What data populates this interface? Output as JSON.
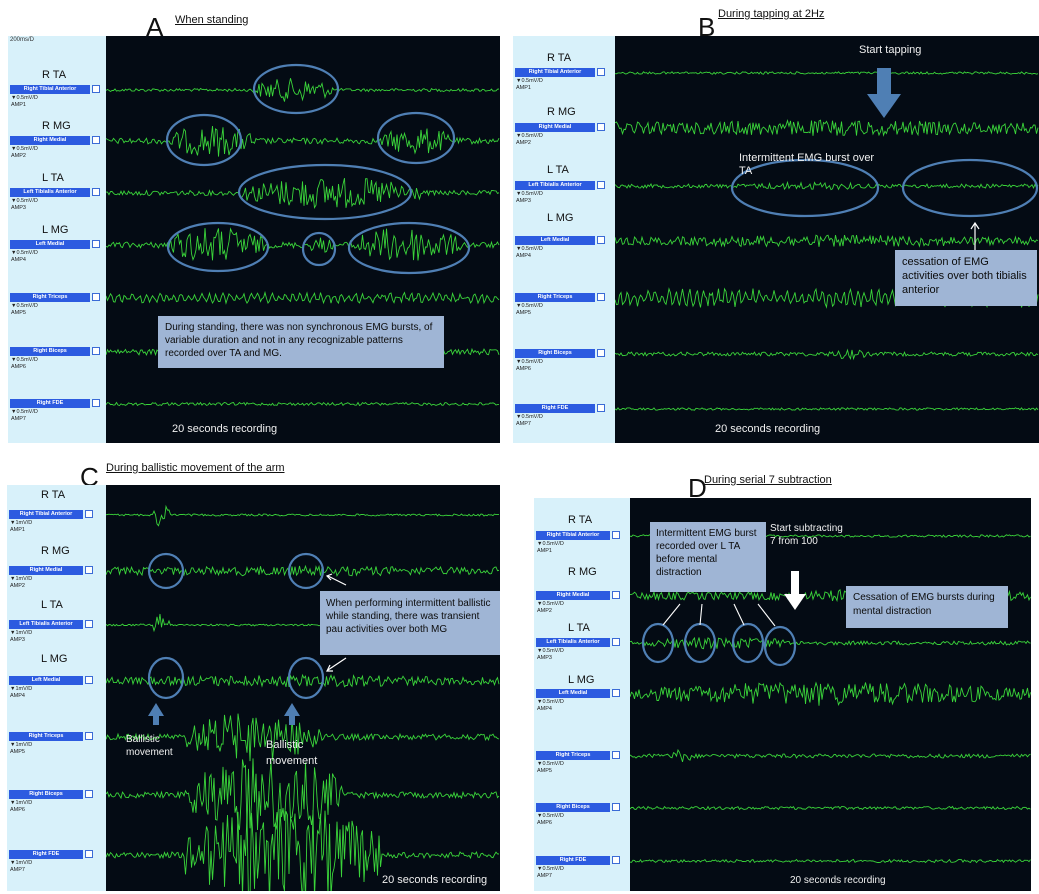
{
  "panels": [
    {
      "id": "A",
      "letter": "A",
      "title": "When standing",
      "scale": "200ms/D",
      "footer": "20 seconds recording",
      "channels": [
        {
          "name": "R TA",
          "button": "Right Tibial Anterior",
          "sens": "0.5mV/D",
          "amp": "AMP1"
        },
        {
          "name": "R MG",
          "button": "Right Medial",
          "sens": "0.5mV/D",
          "amp": "AMP2"
        },
        {
          "name": "L TA",
          "button": "Left Tibialis Anterior",
          "sens": "0.5mV/D",
          "amp": "AMP3"
        },
        {
          "name": "L MG",
          "button": "Left Medial",
          "sens": "0.5mV/D",
          "amp": "AMP4"
        },
        {
          "name": "",
          "button": "Right Triceps",
          "sens": "0.5mV/D",
          "amp": "AMP5"
        },
        {
          "name": "",
          "button": "Right Biceps",
          "sens": "0.5mV/D",
          "amp": "AMP6"
        },
        {
          "name": "",
          "button": "Right FDE",
          "sens": "0.5mV/D",
          "amp": "AMP7"
        }
      ],
      "notes": [
        "During standing, there was non synchronous EMG bursts, of variable duration and not in any recognizable patterns recorded over TA and MG."
      ]
    },
    {
      "id": "B",
      "letter": "B",
      "title": "During tapping at 2Hz",
      "footer": "20 seconds recording",
      "channels": [
        {
          "name": "R TA",
          "button": "Right Tibial Anterior",
          "sens": "0.5mV/D",
          "amp": "AMP1"
        },
        {
          "name": "R MG",
          "button": "Right Medial",
          "sens": "0.5mV/D",
          "amp": "AMP2"
        },
        {
          "name": "L TA",
          "button": "Left Tibialis Anterior",
          "sens": "0.5mV/D",
          "amp": "AMP3"
        },
        {
          "name": "L MG",
          "button": "Left Medial",
          "sens": "0.5mV/D",
          "amp": "AMP4"
        },
        {
          "name": "",
          "button": "Right Triceps",
          "sens": "0.5mV/D",
          "amp": "AMP5"
        },
        {
          "name": "",
          "button": "Right Biceps",
          "sens": "0.5mV/D",
          "amp": "AMP6"
        },
        {
          "name": "",
          "button": "Right FDE",
          "sens": "0.5mV/D",
          "amp": "AMP7"
        }
      ],
      "labels": {
        "start": "Start tapping",
        "burst": "Intermittent  EMG burst over TA"
      },
      "notes": [
        "cessation of EMG activities over both tibialis anterior"
      ]
    },
    {
      "id": "C",
      "letter": "C",
      "title": "During ballistic movement of the arm",
      "footer": "20 seconds recording",
      "channels": [
        {
          "name": "R TA",
          "button": "Right Tibial Anterior",
          "sens": "1mV/D",
          "amp": "AMP1"
        },
        {
          "name": "R MG",
          "button": "Right Medial",
          "sens": "1mV/D",
          "amp": "AMP2"
        },
        {
          "name": "L TA",
          "button": "Left Tibialis Anterior",
          "sens": "1mV/D",
          "amp": "AMP3"
        },
        {
          "name": "L MG",
          "button": "Left Medial",
          "sens": "1mV/D",
          "amp": "AMP4"
        },
        {
          "name": "",
          "button": "Right Triceps",
          "sens": "1mV/D",
          "amp": "AMP5"
        },
        {
          "name": "",
          "button": "Right Biceps",
          "sens": "1mV/D",
          "amp": "AMP6"
        },
        {
          "name": "",
          "button": "Right FDE",
          "sens": "1mV/D",
          "amp": "AMP7"
        }
      ],
      "labels": {
        "ballistic1": "Ballistic movement",
        "ballistic2": "Ballistic movement"
      },
      "notes": [
        "When performing  intermittent  ballistic while standing, there was transient pau activities over both MG"
      ]
    },
    {
      "id": "D",
      "letter": "D",
      "title": "During serial  7 subtraction",
      "footer": "20 seconds recording",
      "channels": [
        {
          "name": "R TA",
          "button": "Right Tibial Anterior",
          "sens": "0.5mV/D",
          "amp": "AMP1"
        },
        {
          "name": "R MG",
          "button": "Right Medial",
          "sens": "0.5mV/D",
          "amp": "AMP2"
        },
        {
          "name": "L TA",
          "button": "Left Tibialis Anterior",
          "sens": "0.5mV/D",
          "amp": "AMP3"
        },
        {
          "name": "L MG",
          "button": "Left Medial",
          "sens": "0.5mV/D",
          "amp": "AMP4"
        },
        {
          "name": "",
          "button": "Right Triceps",
          "sens": "0.5mV/D",
          "amp": "AMP5"
        },
        {
          "name": "",
          "button": "Right Biceps",
          "sens": "0.5mV/D",
          "amp": "AMP6"
        },
        {
          "name": "",
          "button": "Right FDE",
          "sens": "0.5mV/D",
          "amp": "AMP7"
        }
      ],
      "labels": {
        "start": "Start subtracting 7 from 100"
      },
      "notes": [
        "Intermittent EMG burst recorded over L TA before mental distraction",
        "Cessation  of EMG bursts during mental distraction"
      ]
    }
  ],
  "colors": {
    "trace": "#3ad43a",
    "screen": "#040b14",
    "sidebar": "#d8f1fa",
    "callout": "#9fb5d5",
    "ellipse": "#4f7fb4",
    "button": "#2c5be0"
  }
}
